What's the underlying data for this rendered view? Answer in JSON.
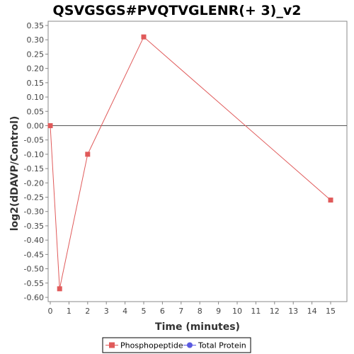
{
  "chart_data": {
    "type": "line",
    "title": "QSVGSGS#PVQTVGLENR(+ 3)_v2",
    "xlabel": "Time (minutes)",
    "ylabel": "log2(dDAVP/Control)",
    "xlim": [
      0,
      16
    ],
    "ylim": [
      -0.62,
      0.35
    ],
    "x_ticks": [
      0,
      1,
      2,
      3,
      4,
      5,
      6,
      7,
      8,
      9,
      10,
      11,
      12,
      13,
      14,
      15
    ],
    "y_ticks": [
      0.35,
      0.3,
      0.25,
      0.2,
      0.15,
      0.1,
      0.05,
      0.0,
      -0.05,
      -0.1,
      -0.15,
      -0.2,
      -0.25,
      -0.3,
      -0.35,
      -0.4,
      -0.45,
      -0.5,
      -0.55,
      -0.6
    ],
    "y_tick_labels": [
      "0.35",
      "0.30",
      "0.25",
      "0.20",
      "0.15",
      "0.10",
      "0.05",
      "0.00",
      "-0.05",
      "-0.10",
      "-0.15",
      "-0.20",
      "-0.25",
      "-0.30",
      "-0.35",
      "-0.40",
      "-0.45",
      "-0.50",
      "-0.55",
      "-0.60"
    ],
    "zero_line": 0,
    "grid": false,
    "legend_position": "bottom",
    "series": [
      {
        "name": "Phosphopeptide",
        "color": "#e05a5a",
        "marker": "square",
        "points": [
          {
            "x": 0,
            "y": 0.0
          },
          {
            "x": 0.5,
            "y": -0.57
          },
          {
            "x": 2,
            "y": -0.1
          },
          {
            "x": 5,
            "y": 0.31
          },
          {
            "x": 15,
            "y": -0.26
          }
        ]
      },
      {
        "name": "Total Protein",
        "color": "#5a5ae0",
        "marker": "circle",
        "points": []
      }
    ]
  }
}
